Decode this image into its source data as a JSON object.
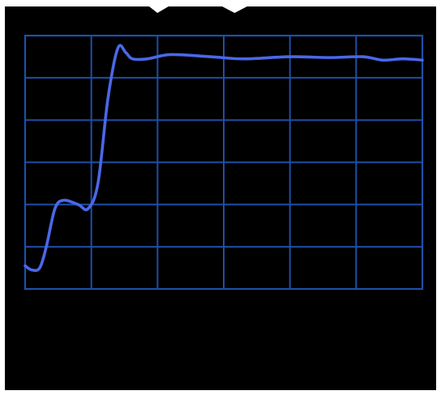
{
  "chart_data": {
    "type": "line",
    "title": "",
    "xlabel": "",
    "ylabel": "",
    "grid": true,
    "legend": "none",
    "xlim": [
      0,
      6
    ],
    "ylim": [
      0,
      6
    ],
    "series": [
      {
        "values": [
          [
            0.0,
            0.55
          ],
          [
            0.1,
            0.45
          ],
          [
            0.22,
            0.5
          ],
          [
            0.32,
            1.0
          ],
          [
            0.45,
            1.9
          ],
          [
            0.58,
            2.1
          ],
          [
            0.8,
            2.0
          ],
          [
            0.95,
            1.9
          ],
          [
            1.1,
            2.5
          ],
          [
            1.25,
            4.5
          ],
          [
            1.4,
            5.7
          ],
          [
            1.52,
            5.6
          ],
          [
            1.62,
            5.45
          ],
          [
            1.85,
            5.45
          ],
          [
            2.2,
            5.55
          ],
          [
            2.8,
            5.5
          ],
          [
            3.3,
            5.45
          ],
          [
            4.0,
            5.5
          ],
          [
            4.6,
            5.48
          ],
          [
            5.1,
            5.5
          ],
          [
            5.4,
            5.42
          ],
          [
            5.7,
            5.45
          ],
          [
            6.0,
            5.42
          ]
        ]
      }
    ],
    "colors": {
      "background": "#000000",
      "grid": "#1e4fa8",
      "line": "#4a68e8"
    }
  }
}
